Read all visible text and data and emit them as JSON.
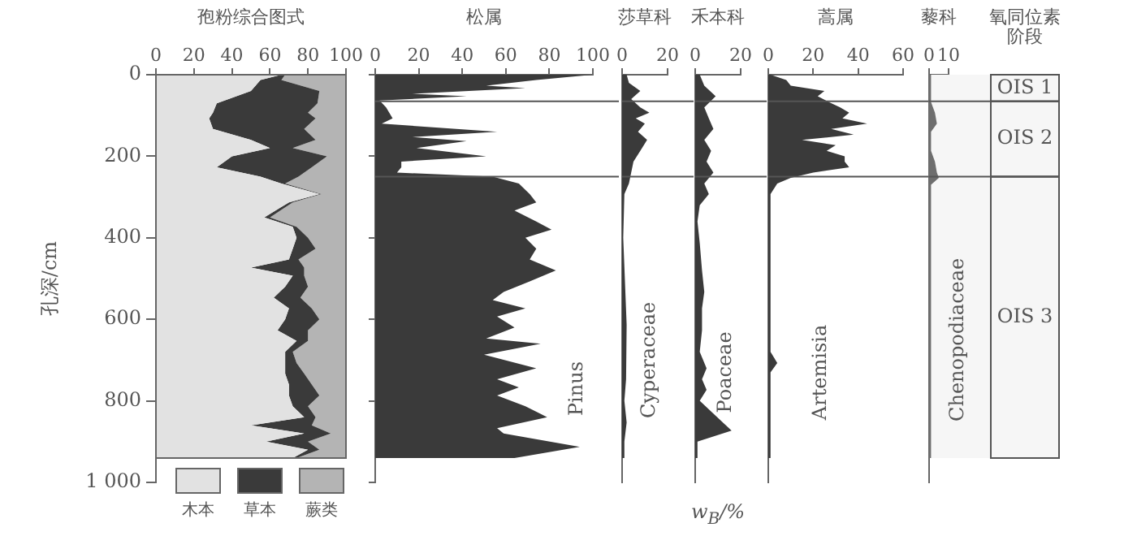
{
  "chart_data": [
    {
      "type": "area",
      "title": "孢粉综合图式",
      "ylabel": "孔深/cm",
      "orientation": "horizontal",
      "stacked": true,
      "legend": "bottom",
      "xlim": [
        0,
        100
      ],
      "xticks": [
        0,
        20,
        40,
        60,
        80,
        100
      ],
      "ylim": [
        1000,
        0
      ],
      "yticks": [
        0,
        200,
        400,
        600,
        800,
        {
          "value": 1000,
          "label": "1 000"
        }
      ],
      "x": [
        0,
        13,
        40,
        70,
        93,
        107,
        133,
        160,
        180,
        200,
        227,
        250,
        267,
        293,
        313,
        350,
        373,
        400,
        427,
        453,
        473,
        493,
        520,
        547,
        573,
        600,
        627,
        653,
        680,
        707,
        733,
        760,
        787,
        813,
        840,
        860,
        880,
        900,
        920,
        940
      ],
      "series": [
        {
          "name": "木本",
          "color": "#e2e2e2",
          "values": [
            66,
            55,
            50,
            32,
            30,
            28,
            30,
            50,
            60,
            40,
            32,
            55,
            66,
            86,
            70,
            57,
            72,
            74,
            72,
            70,
            50,
            72,
            68,
            62,
            70,
            68,
            64,
            74,
            68,
            68,
            68,
            70,
            70,
            72,
            78,
            50,
            78,
            58,
            80,
            72
          ]
        },
        {
          "name": "草本",
          "color": "#3a3a3a",
          "values": [
            2,
            11,
            36,
            53,
            50,
            56,
            48,
            34,
            12,
            50,
            50,
            20,
            2,
            1,
            2,
            3,
            2,
            6,
            12,
            5,
            28,
            6,
            12,
            14,
            12,
            18,
            16,
            6,
            4,
            6,
            10,
            12,
            16,
            8,
            6,
            32,
            14,
            22,
            6,
            2
          ]
        },
        {
          "name": "蕨类",
          "color": "#b4b4b4",
          "values": [
            32,
            34,
            14,
            15,
            20,
            16,
            22,
            16,
            28,
            10,
            18,
            25,
            32,
            13,
            28,
            40,
            26,
            20,
            16,
            25,
            22,
            22,
            20,
            24,
            18,
            14,
            20,
            20,
            28,
            26,
            22,
            18,
            14,
            20,
            16,
            18,
            8,
            20,
            14,
            26
          ]
        }
      ]
    },
    {
      "type": "area",
      "title": "松属",
      "orientation": "horizontal",
      "tick_labels": "x",
      "xlim": [
        0,
        100
      ],
      "xticks": [
        0,
        20,
        40,
        60,
        80,
        100
      ],
      "ylim": [
        1000,
        0
      ],
      "yticks": [
        0,
        200,
        400,
        600,
        800,
        1000
      ],
      "ref_lines": [
        {
          "axis": "y",
          "value": 65
        },
        {
          "axis": "y",
          "value": 250
        }
      ],
      "x": [
        0,
        13,
        27,
        33,
        47,
        53,
        63,
        80,
        107,
        120,
        140,
        153,
        163,
        180,
        200,
        213,
        227,
        240,
        250,
        267,
        293,
        313,
        333,
        360,
        380,
        400,
        427,
        453,
        480,
        507,
        533,
        553,
        573,
        593,
        620,
        647,
        660,
        687,
        720,
        747,
        767,
        787,
        813,
        840,
        867,
        880,
        913,
        940
      ],
      "series": [
        {
          "name": "Pinus",
          "color": "#3a3a3a",
          "values": [
            100,
            74,
            51,
            69,
            17,
            42,
            2,
            5,
            8,
            3,
            56,
            17,
            42,
            19,
            51,
            12,
            12,
            10,
            54,
            66,
            71,
            74,
            64,
            74,
            81,
            69,
            74,
            71,
            83,
            71,
            59,
            54,
            69,
            56,
            64,
            51,
            76,
            50,
            74,
            56,
            66,
            56,
            69,
            79,
            56,
            59,
            94,
            64
          ]
        }
      ]
    },
    {
      "type": "area",
      "title": "莎草科",
      "orientation": "horizontal",
      "tick_labels": "x",
      "xlim": [
        0,
        20
      ],
      "xticks": [
        0,
        20
      ],
      "ylim": [
        1000,
        0
      ],
      "ref_lines": [
        {
          "axis": "y",
          "value": 65
        },
        {
          "axis": "y",
          "value": 250
        }
      ],
      "x": [
        0,
        20,
        40,
        60,
        80,
        93,
        107,
        120,
        140,
        160,
        187,
        213,
        240,
        267,
        293,
        400,
        613,
        693,
        747,
        800,
        853,
        900,
        940
      ],
      "series": [
        {
          "name": "Cyperaceae",
          "color": "#3a3a3a",
          "values": [
            2,
            3,
            8,
            4,
            8,
            12,
            6,
            10,
            7,
            11,
            8,
            5,
            4,
            3,
            1,
            0.5,
            2,
            1.5,
            2,
            1,
            2,
            1,
            1
          ]
        }
      ]
    },
    {
      "type": "area",
      "title": "禾本科",
      "orientation": "horizontal",
      "tick_labels": "x",
      "xlim": [
        0,
        20
      ],
      "xticks": [
        0,
        20
      ],
      "ylim": [
        1000,
        0
      ],
      "ref_lines": [
        {
          "axis": "y",
          "value": 65
        },
        {
          "axis": "y",
          "value": 250
        }
      ],
      "x": [
        0,
        27,
        53,
        80,
        107,
        133,
        160,
        187,
        213,
        240,
        267,
        293,
        320,
        360,
        413,
        480,
        533,
        573,
        627,
        680,
        720,
        747,
        773,
        800,
        873,
        900,
        940
      ],
      "series": [
        {
          "name": "Poaceae",
          "color": "#3a3a3a",
          "values": [
            2,
            4,
            9,
            4,
            6,
            8,
            4,
            7,
            5,
            8,
            4,
            6,
            2,
            1,
            2,
            3,
            4,
            3,
            3,
            2,
            5,
            3,
            5,
            2,
            16,
            1,
            1
          ]
        }
      ],
      "xlabel": "w$_{B}$/%"
    },
    {
      "type": "area",
      "title": "蒿属",
      "orientation": "horizontal",
      "tick_labels": "x",
      "xlim": [
        0,
        60
      ],
      "xticks": [
        0,
        20,
        40,
        60
      ],
      "ylim": [
        1000,
        0
      ],
      "ref_lines": [
        {
          "axis": "y",
          "value": 65
        },
        {
          "axis": "y",
          "value": 250
        }
      ],
      "x": [
        0,
        13,
        27,
        40,
        53,
        67,
        80,
        93,
        107,
        120,
        133,
        147,
        160,
        173,
        187,
        200,
        213,
        227,
        240,
        253,
        267,
        293,
        680,
        707,
        730,
        940
      ],
      "series": [
        {
          "name": "Artemisia",
          "color": "#3a3a3a",
          "values": [
            1,
            8,
            10,
            25,
            22,
            27,
            32,
            36,
            33,
            44,
            28,
            38,
            15,
            30,
            26,
            34,
            34,
            36,
            20,
            10,
            4,
            1,
            1,
            4,
            1,
            1
          ]
        }
      ]
    },
    {
      "type": "area",
      "title": "藜科",
      "orientation": "horizontal",
      "tick_labels": "x",
      "xlim": [
        0,
        10
      ],
      "xticks": [
        0,
        10
      ],
      "ylim": [
        1000,
        0
      ],
      "ref_lines": [
        {
          "axis": "y",
          "value": 65
        },
        {
          "axis": "y",
          "value": 250
        }
      ],
      "bands": [
        {
          "axis": "y",
          "from": 0,
          "to": 65,
          "label": "OIS 1",
          "color": "#f6f6f6"
        },
        {
          "axis": "y",
          "from": 65,
          "to": 250,
          "label": "OIS 2",
          "color": "#f6f6f6"
        },
        {
          "axis": "y",
          "from": 250,
          "to": 940,
          "label": "OIS 3",
          "color": "#f6f6f6"
        }
      ],
      "annotations": [
        "氧同位素阶段"
      ],
      "x": [
        0,
        67,
        93,
        120,
        140,
        187,
        213,
        240,
        253,
        270,
        300,
        940
      ],
      "series": [
        {
          "name": "Chenopodiaceae",
          "color": "#6e6e6e",
          "values": [
            1,
            1,
            3,
            4,
            1,
            1,
            3,
            4,
            5,
            1,
            1,
            1
          ]
        }
      ]
    }
  ]
}
